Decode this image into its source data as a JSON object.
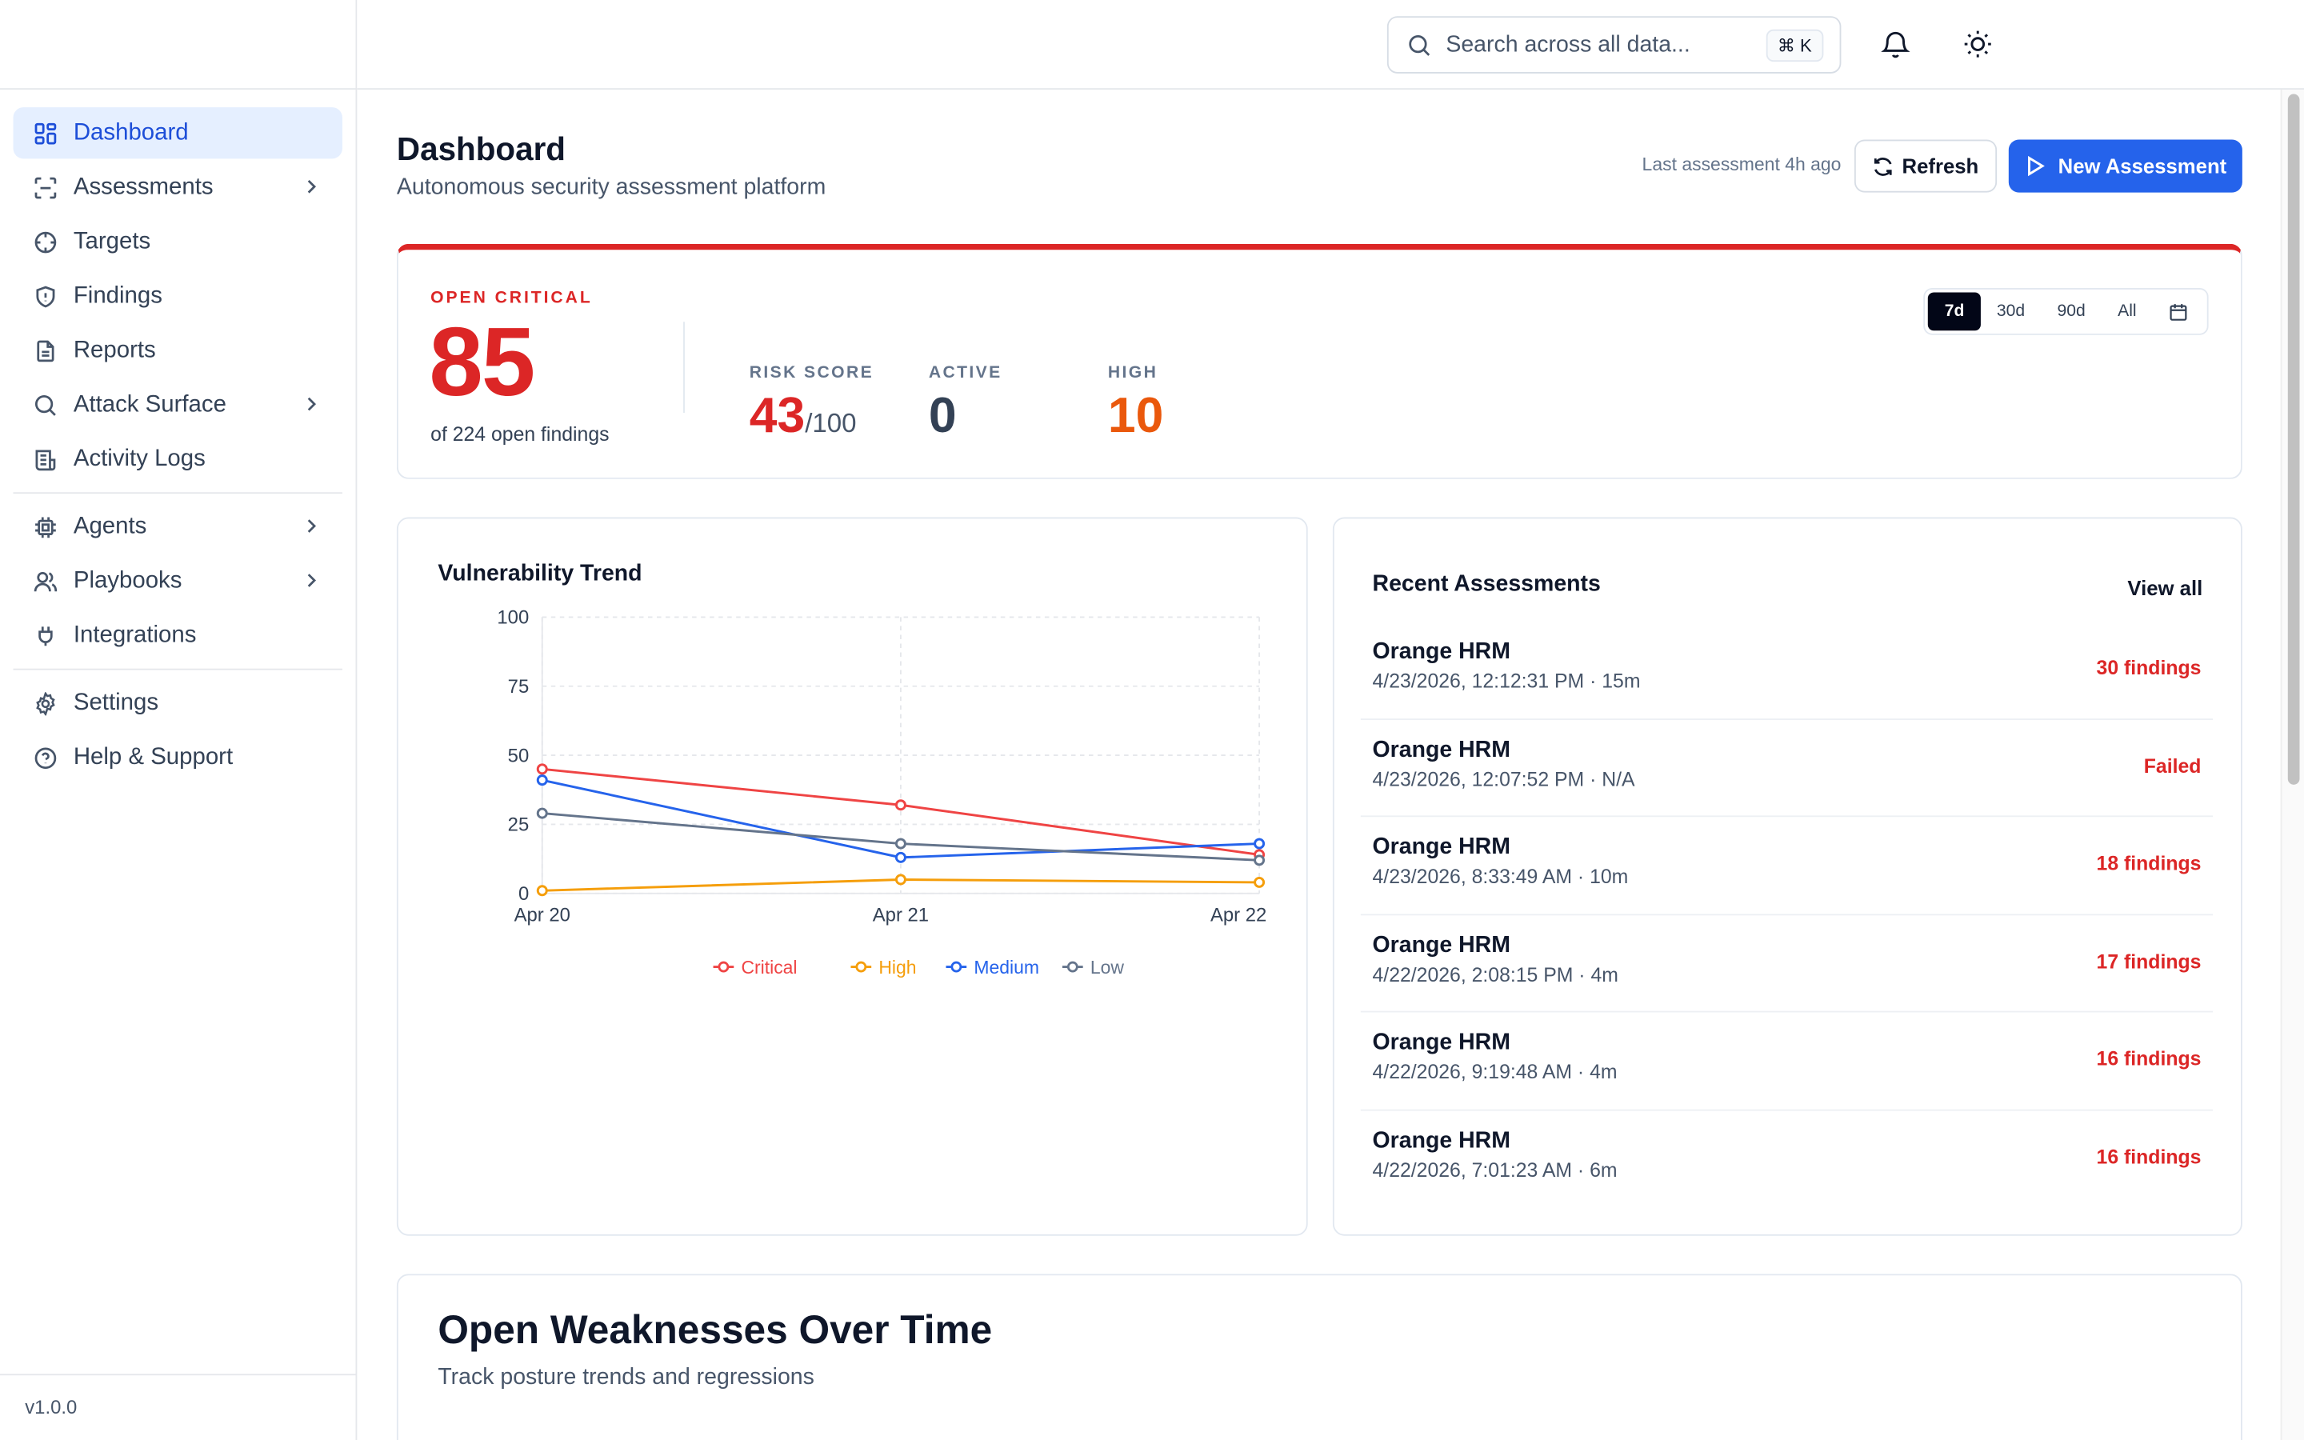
{
  "sidebar": {
    "items": [
      {
        "label": "Dashboard"
      },
      {
        "label": "Assessments"
      },
      {
        "label": "Targets"
      },
      {
        "label": "Findings"
      },
      {
        "label": "Reports"
      },
      {
        "label": "Attack Surface"
      },
      {
        "label": "Activity Logs"
      },
      {
        "label": "Agents"
      },
      {
        "label": "Playbooks"
      },
      {
        "label": "Integrations"
      },
      {
        "label": "Settings"
      },
      {
        "label": "Help & Support"
      }
    ],
    "version": "v1.0.0"
  },
  "topbar": {
    "search_placeholder": "Search across all data...",
    "shortcut": "⌘ K"
  },
  "header": {
    "title": "Dashboard",
    "subtitle": "Autonomous security assessment platform",
    "last_assessment": "Last assessment 4h ago",
    "refresh_label": "Refresh",
    "new_assessment_label": "New Assessment"
  },
  "summary": {
    "open_critical_label": "OPEN CRITICAL",
    "open_critical_value": "85",
    "open_critical_sub": "of 224 open findings",
    "risk_label": "RISK SCORE",
    "risk_value": "43",
    "risk_max": "/100",
    "active_label": "ACTIVE",
    "active_value": "0",
    "high_label": "HIGH",
    "high_value": "10",
    "ranges": [
      "7d",
      "30d",
      "90d",
      "All"
    ],
    "selected_range": "7d"
  },
  "colors": {
    "critical": "#dc2626",
    "high": "#f59e0b",
    "medium": "#2563eb",
    "low": "#64748b",
    "high_stat": "#ea580c",
    "accent": "#2563eb"
  },
  "chart_data": {
    "type": "line",
    "title": "Vulnerability Trend",
    "categories": [
      "Apr 20",
      "Apr 21",
      "Apr 22"
    ],
    "ylim": [
      0,
      100
    ],
    "yticks": [
      0,
      25,
      50,
      75,
      100
    ],
    "grid": true,
    "legend": "bottom",
    "series": [
      {
        "name": "Critical",
        "values": [
          45,
          32,
          14
        ],
        "color": "#ef4444"
      },
      {
        "name": "High",
        "values": [
          1,
          5,
          4
        ],
        "color": "#f59e0b"
      },
      {
        "name": "Medium",
        "values": [
          41,
          13,
          18
        ],
        "color": "#2563eb"
      },
      {
        "name": "Low",
        "values": [
          29,
          18,
          12
        ],
        "color": "#64748b"
      }
    ]
  },
  "recent": {
    "title": "Recent Assessments",
    "view_all": "View all",
    "items": [
      {
        "name": "Orange HRM",
        "meta": "4/23/2026, 12:12:31 PM · 15m",
        "status": "30 findings"
      },
      {
        "name": "Orange HRM",
        "meta": "4/23/2026, 12:07:52 PM · N/A",
        "status": "Failed"
      },
      {
        "name": "Orange HRM",
        "meta": "4/23/2026, 8:33:49 AM · 10m",
        "status": "18 findings"
      },
      {
        "name": "Orange HRM",
        "meta": "4/22/2026, 2:08:15 PM · 4m",
        "status": "17 findings"
      },
      {
        "name": "Orange HRM",
        "meta": "4/22/2026, 9:19:48 AM · 4m",
        "status": "16 findings"
      },
      {
        "name": "Orange HRM",
        "meta": "4/22/2026, 7:01:23 AM · 6m",
        "status": "16 findings"
      }
    ]
  },
  "weaknesses": {
    "title": "Open Weaknesses Over Time",
    "subtitle": "Track posture trends and regressions"
  }
}
